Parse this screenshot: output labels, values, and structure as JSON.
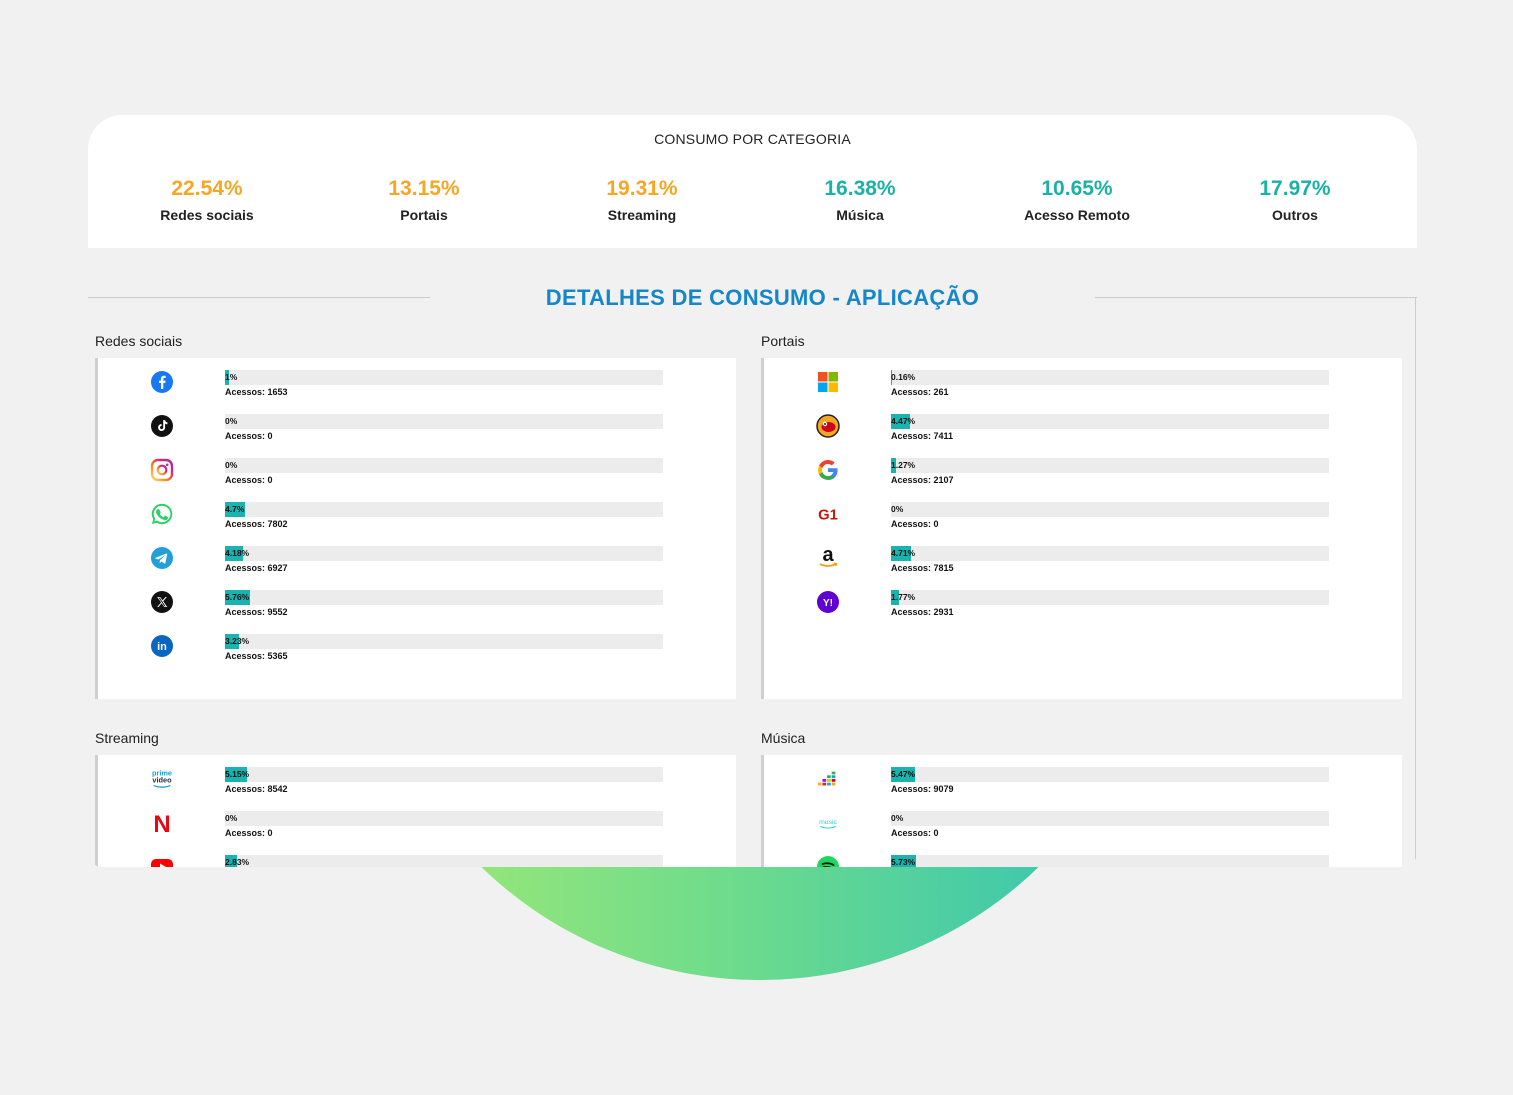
{
  "summary": {
    "title": "CONSUMO POR CATEGORIA",
    "stats": [
      {
        "value": "22.54%",
        "label": "Redes sociais",
        "color": "#f5a623"
      },
      {
        "value": "13.15%",
        "label": "Portais",
        "color": "#f5a623"
      },
      {
        "value": "19.31%",
        "label": "Streaming",
        "color": "#f5a623"
      },
      {
        "value": "16.38%",
        "label": "Música",
        "color": "#1bb1a6"
      },
      {
        "value": "10.65%",
        "label": "Acesso Remoto",
        "color": "#1bb1a6"
      },
      {
        "value": "17.97%",
        "label": "Outros",
        "color": "#1bb1a6"
      }
    ]
  },
  "details": {
    "title": "DETALHES DE CONSUMO - APLICAÇÃO",
    "categories": [
      {
        "name": "Redes sociais",
        "apps": [
          {
            "icon": "facebook-icon",
            "pct_label": "1%",
            "pct": 1,
            "accesses": "Acessos: 1653"
          },
          {
            "icon": "tiktok-icon",
            "pct_label": "0%",
            "pct": 0,
            "accesses": "Acessos: 0"
          },
          {
            "icon": "instagram-icon",
            "pct_label": "0%",
            "pct": 0,
            "accesses": "Acessos: 0"
          },
          {
            "icon": "whatsapp-icon",
            "pct_label": "4.7%",
            "pct": 4.7,
            "accesses": "Acessos: 7802"
          },
          {
            "icon": "telegram-icon",
            "pct_label": "4.18%",
            "pct": 4.18,
            "accesses": "Acessos: 6927"
          },
          {
            "icon": "x-icon",
            "pct_label": "5.76%",
            "pct": 5.76,
            "accesses": "Acessos: 9552"
          },
          {
            "icon": "linkedin-icon",
            "pct_label": "3.23%",
            "pct": 3.23,
            "accesses": "Acessos: 5365"
          }
        ]
      },
      {
        "name": "Portais",
        "apps": [
          {
            "icon": "microsoft-icon",
            "pct_label": "0.16%",
            "pct": 0.16,
            "accesses": "Acessos: 261"
          },
          {
            "icon": "uol-icon",
            "pct_label": "4.47%",
            "pct": 4.47,
            "accesses": "Acessos: 7411"
          },
          {
            "icon": "google-icon",
            "pct_label": "1.27%",
            "pct": 1.27,
            "accesses": "Acessos: 2107"
          },
          {
            "icon": "g1-icon",
            "pct_label": "0%",
            "pct": 0,
            "accesses": "Acessos: 0"
          },
          {
            "icon": "amazon-icon",
            "pct_label": "4.71%",
            "pct": 4.71,
            "accesses": "Acessos: 7815"
          },
          {
            "icon": "yahoo-icon",
            "pct_label": "1.77%",
            "pct": 1.77,
            "accesses": "Acessos: 2931"
          }
        ]
      },
      {
        "name": "Streaming",
        "apps": [
          {
            "icon": "prime-video-icon",
            "pct_label": "5.15%",
            "pct": 5.15,
            "accesses": "Acessos: 8542"
          },
          {
            "icon": "netflix-icon",
            "pct_label": "0%",
            "pct": 0,
            "accesses": "Acessos: 0"
          },
          {
            "icon": "youtube-icon",
            "pct_label": "2.83%",
            "pct": 2.83,
            "accesses": ""
          }
        ]
      },
      {
        "name": "Música",
        "apps": [
          {
            "icon": "deezer-icon",
            "pct_label": "5.47%",
            "pct": 5.47,
            "accesses": "Acessos: 9079"
          },
          {
            "icon": "amazon-music-icon",
            "pct_label": "0%",
            "pct": 0,
            "accesses": "Acessos: 0"
          },
          {
            "icon": "spotify-icon",
            "pct_label": "5.73%",
            "pct": 5.73,
            "accesses": ""
          }
        ]
      }
    ]
  },
  "icon_text": {
    "prime_top": "prime",
    "prime_bottom": "video",
    "netflix": "N",
    "g1": "G1",
    "amazon": "a",
    "yahoo": "Y!",
    "linkedin": "in",
    "music": "music"
  }
}
